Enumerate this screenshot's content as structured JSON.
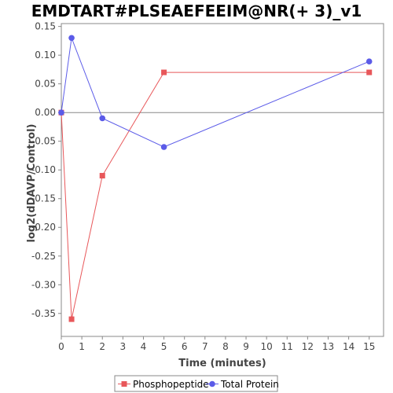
{
  "chart_data": {
    "type": "line",
    "title": "EMDTART#PLSEAEFEEIM@NR(+ 3)_v1",
    "xlabel": "Time (minutes)",
    "ylabel": "log2(dDAVP/Control)",
    "xlim": [
      0,
      15.7
    ],
    "ylim": [
      -0.39,
      0.155
    ],
    "xticks": [
      0,
      1,
      2,
      3,
      4,
      5,
      6,
      7,
      8,
      9,
      10,
      11,
      12,
      13,
      14,
      15
    ],
    "xtick_labels": [
      "0",
      "1",
      "2",
      "3",
      "4",
      "5",
      "6",
      "7",
      "8",
      "9",
      "10",
      "11",
      "12",
      "13",
      "14",
      "15"
    ],
    "yticks": [
      0.15,
      0.1,
      0.05,
      0.0,
      -0.05,
      -0.1,
      -0.15,
      -0.2,
      -0.25,
      -0.3,
      -0.35
    ],
    "ytick_labels": [
      "0.15",
      "0.10",
      "0.05",
      "0.00",
      "-0.05",
      "-0.10",
      "-0.15",
      "-0.20",
      "-0.25",
      "-0.30",
      "-0.35"
    ],
    "grid": false,
    "zero_line": true,
    "legend_position": "bottom-center",
    "series": [
      {
        "name": "Phosphopeptide",
        "color": "#e8575a",
        "marker": "square",
        "x": [
          0,
          0.5,
          2,
          5,
          15
        ],
        "y": [
          0.0,
          -0.36,
          -0.11,
          0.07,
          0.07
        ]
      },
      {
        "name": "Total Protein",
        "color": "#5b5be8",
        "marker": "circle",
        "x": [
          0,
          0.5,
          2,
          5,
          15
        ],
        "y": [
          0.0,
          0.13,
          -0.01,
          -0.06,
          0.089
        ]
      }
    ]
  }
}
